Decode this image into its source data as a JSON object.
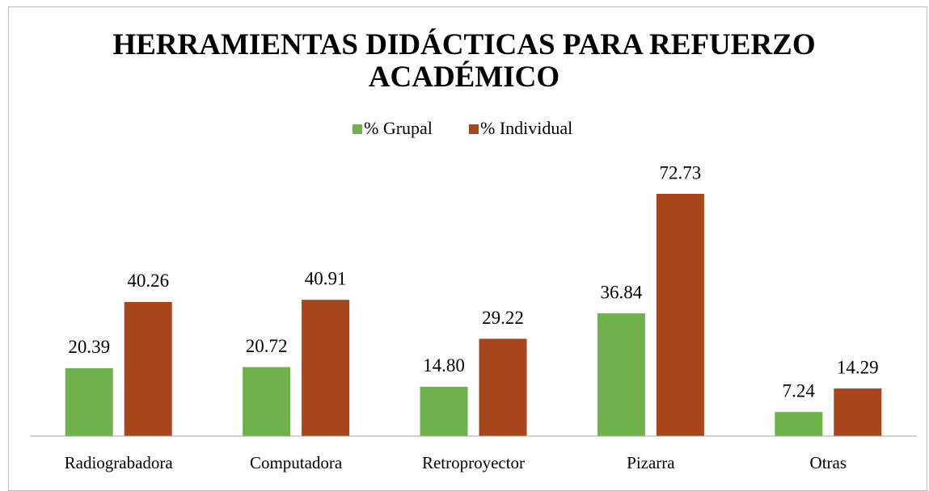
{
  "chart_data": {
    "type": "bar",
    "title": "HERRAMIENTAS DIDÁCTICAS PARA REFUERZO ACADÉMICO",
    "categories": [
      "Radiograbadora",
      "Computadora",
      "Retroproyector",
      "Pizarra",
      "Otras"
    ],
    "series": [
      {
        "name": "% Grupal",
        "color": "#6fb24b",
        "values": [
          20.39,
          20.72,
          14.8,
          36.84,
          7.24
        ],
        "value_labels": [
          "20.39",
          "20.72",
          "14.80",
          "36.84",
          "7.24"
        ]
      },
      {
        "name": "% Individual",
        "color": "#a6461a",
        "values": [
          40.26,
          40.91,
          29.22,
          72.73,
          14.29
        ],
        "value_labels": [
          "40.26",
          "40.91",
          "29.22",
          "72.73",
          "14.29"
        ]
      }
    ],
    "legend": "top"
  }
}
